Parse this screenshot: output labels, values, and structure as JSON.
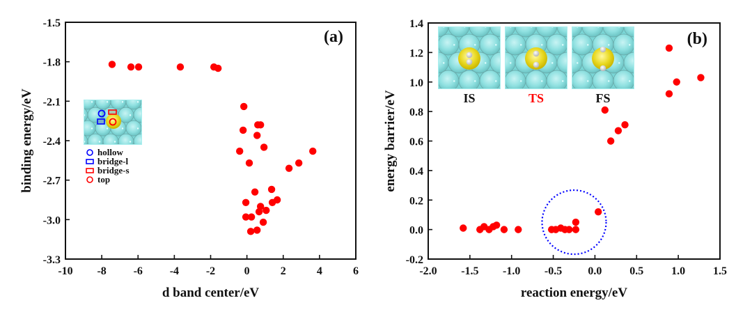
{
  "chart_data": [
    {
      "type": "scatter",
      "panel_label": "(a)",
      "title": "",
      "xlabel": "d band center/eV",
      "ylabel": "binding energy/eV",
      "xlim": [
        -10,
        6
      ],
      "ylim": [
        -3.3,
        -1.5
      ],
      "xticks": [
        -10,
        -8,
        -6,
        -4,
        -2,
        0,
        2,
        4,
        6
      ],
      "yticks": [
        -1.5,
        -1.8,
        -2.1,
        -2.4,
        -2.7,
        -3.0,
        -3.3
      ],
      "xtick_labels": [
        "-10",
        "-8",
        "-6",
        "-4",
        "-2",
        "0",
        "2",
        "4",
        "6"
      ],
      "ytick_labels": [
        "-1.5",
        "-1.8",
        "-2.1",
        "-2.4",
        "-2.7",
        "-3.0",
        "-3.3"
      ],
      "grid": false,
      "marker_color": "#ff0000",
      "points": [
        [
          -7.43,
          -1.82
        ],
        [
          -6.39,
          -1.84
        ],
        [
          -5.97,
          -1.84
        ],
        [
          -3.67,
          -1.84
        ],
        [
          -1.82,
          -1.84
        ],
        [
          -1.59,
          -1.85
        ],
        [
          -0.17,
          -2.14
        ],
        [
          0.6,
          -2.28
        ],
        [
          0.75,
          -2.28
        ],
        [
          -0.21,
          -2.32
        ],
        [
          0.56,
          -2.36
        ],
        [
          0.94,
          -2.45
        ],
        [
          -0.4,
          -2.48
        ],
        [
          0.13,
          -2.57
        ],
        [
          2.32,
          -2.61
        ],
        [
          2.86,
          -2.57
        ],
        [
          3.63,
          -2.48
        ],
        [
          0.44,
          -2.79
        ],
        [
          1.36,
          -2.77
        ],
        [
          -0.06,
          -2.87
        ],
        [
          1.67,
          -2.85
        ],
        [
          1.4,
          -2.87
        ],
        [
          0.75,
          -2.9
        ],
        [
          -0.06,
          -2.98
        ],
        [
          0.25,
          -2.98
        ],
        [
          0.67,
          -2.94
        ],
        [
          1.06,
          -2.93
        ],
        [
          0.9,
          -3.02
        ],
        [
          0.21,
          -3.09
        ],
        [
          0.56,
          -3.08
        ]
      ],
      "inset": {
        "description": "surface model showing adsorption sites",
        "legend": [
          {
            "label": "hollow",
            "marker": "circle",
            "color": "#0000ff"
          },
          {
            "label": "bridge-l",
            "marker": "square",
            "color": "#0000ff"
          },
          {
            "label": "bridge-s",
            "marker": "square",
            "color": "#ff0000"
          },
          {
            "label": "top",
            "marker": "circle",
            "color": "#ff0000"
          }
        ]
      },
      "legend_position": "left"
    },
    {
      "type": "scatter",
      "panel_label": "(b)",
      "title": "",
      "xlabel": "reaction energy/eV",
      "ylabel": "energy barrier/eV",
      "xlim": [
        -2.0,
        1.5
      ],
      "ylim": [
        -0.2,
        1.4
      ],
      "xticks": [
        -2.0,
        -1.5,
        -1.0,
        -0.5,
        0.0,
        0.5,
        1.0,
        1.5
      ],
      "yticks": [
        -0.2,
        0.0,
        0.2,
        0.4,
        0.6,
        0.8,
        1.0,
        1.2,
        1.4
      ],
      "xtick_labels": [
        "-2.0",
        "-1.5",
        "-1.0",
        "-0.5",
        "0.0",
        "0.5",
        "1.0",
        "1.5"
      ],
      "ytick_labels": [
        "-0.2",
        "0.0",
        "0.2",
        "0.4",
        "0.6",
        "0.8",
        "1.0",
        "1.2",
        "1.4"
      ],
      "grid": false,
      "marker_color": "#ff0000",
      "points": [
        [
          -1.58,
          0.01
        ],
        [
          -1.38,
          0.0
        ],
        [
          -1.33,
          0.02
        ],
        [
          -1.27,
          0.0
        ],
        [
          -1.22,
          0.02
        ],
        [
          -1.18,
          0.03
        ],
        [
          -1.09,
          0.0
        ],
        [
          -0.92,
          0.0
        ],
        [
          -0.52,
          0.0
        ],
        [
          -0.47,
          0.0
        ],
        [
          -0.41,
          0.01
        ],
        [
          -0.36,
          0.0
        ],
        [
          -0.31,
          0.0
        ],
        [
          -0.23,
          0.0
        ],
        [
          -0.23,
          0.05
        ],
        [
          0.04,
          0.12
        ],
        [
          0.12,
          0.81
        ],
        [
          0.19,
          0.6
        ],
        [
          0.28,
          0.67
        ],
        [
          0.36,
          0.71
        ],
        [
          0.89,
          1.23
        ],
        [
          0.89,
          0.92
        ],
        [
          0.98,
          1.0
        ],
        [
          1.27,
          1.03
        ]
      ],
      "highlight_circle": {
        "center": [
          -0.25,
          0.05
        ],
        "color": "#0000ff",
        "style": "dotted"
      },
      "inset_states": [
        {
          "label": "IS",
          "color": "#111111"
        },
        {
          "label": "TS",
          "color": "#ff0000"
        },
        {
          "label": "FS",
          "color": "#111111"
        }
      ]
    }
  ]
}
